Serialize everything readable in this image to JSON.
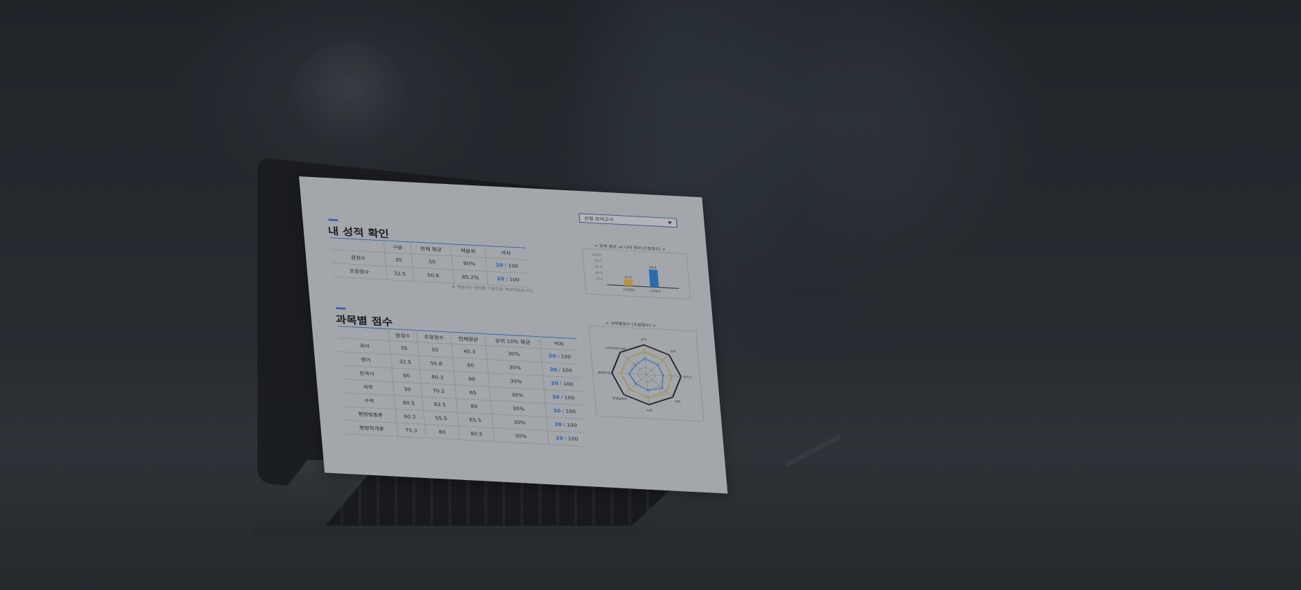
{
  "exam_select": {
    "value": "선정 모의고사"
  },
  "my_score": {
    "title": "내 성적 확인",
    "columns": [
      "구분",
      "전체 평균",
      "백분위",
      "석차"
    ],
    "rows": [
      {
        "label": "원점수",
        "avg": "35",
        "pct_avg": "50",
        "percentile": "90%",
        "rank": "20",
        "total": "100"
      },
      {
        "label": "조정점수",
        "avg": "32.5",
        "pct_avg": "50.6",
        "percentile": "85.2%",
        "rank": "20",
        "total": "100"
      }
    ],
    "header_cols": [
      "구분",
      "",
      "전체 평균",
      "백분위",
      "석차"
    ],
    "note": "※ 백분위는 상위를 기준으로 계산되었습니다."
  },
  "subject_score": {
    "title": "과목별 점수",
    "columns": [
      "",
      "원점수",
      "조정점수",
      "전체평균",
      "상위 10% 평균",
      "석차"
    ],
    "rows": [
      {
        "subject": "국어",
        "raw": "35",
        "adj": "50",
        "avg": "45.3",
        "top10": "30%",
        "rank": "20",
        "total": "100"
      },
      {
        "subject": "영어",
        "raw": "32.5",
        "adj": "50.6",
        "avg": "60",
        "top10": "30%",
        "rank": "20",
        "total": "100"
      },
      {
        "subject": "한국사",
        "raw": "90",
        "adj": "80.3",
        "avg": "90",
        "top10": "30%",
        "rank": "20",
        "total": "100"
      },
      {
        "subject": "과학",
        "raw": "50",
        "adj": "70.2",
        "avg": "65",
        "top10": "30%",
        "rank": "20",
        "total": "100"
      },
      {
        "subject": "수학",
        "raw": "80.5",
        "adj": "83.5",
        "avg": "80",
        "top10": "30%",
        "rank": "20",
        "total": "100"
      },
      {
        "subject": "행정법총론",
        "raw": "60.2",
        "adj": "55.5",
        "avg": "65.5",
        "top10": "30%",
        "rank": "20",
        "total": "100"
      },
      {
        "subject": "행정학개론",
        "raw": "75.3",
        "adj": "80",
        "avg": "80.5",
        "top10": "30%",
        "rank": "20",
        "total": "100"
      }
    ]
  },
  "colors": {
    "accent": "#3a6ed0",
    "rank_blue": "#2f6fd6",
    "bar_yellow": "#d9b43a",
    "bar_blue": "#2f7fd0",
    "radar_dark": "#2a2d31"
  },
  "chart_data": [
    {
      "type": "bar",
      "title": "< 전체 평균 vs 나의 점수(조정점수) >",
      "categories": [
        "전체평균",
        "나의점수"
      ],
      "values": [
        21.6,
        58.6
      ],
      "data_labels": [
        "21.6",
        "58.6"
      ],
      "ytick_labels": [
        "20.0",
        "40.0",
        "60.0",
        "80.0",
        "100.0"
      ]
    },
    {
      "type": "radar",
      "title": "< 과목별점수 (조정점수) >",
      "axes": [
        "국어",
        "영어",
        "한국사",
        "과학",
        "수학",
        "행정법총론",
        "행정학개론",
        "사회복지학개론"
      ],
      "series": [
        {
          "values": [
            80,
            75,
            70,
            82,
            78,
            72,
            74,
            68
          ]
        },
        {
          "values": [
            55,
            50,
            48,
            60,
            52,
            45,
            50,
            42
          ]
        }
      ]
    }
  ]
}
